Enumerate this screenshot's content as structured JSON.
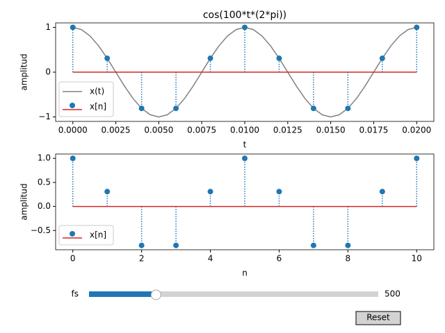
{
  "chart_data": [
    {
      "type": "line",
      "title": "cos(100*t*(2*pi))",
      "x_label": "t",
      "y_label": "amplitud",
      "xlim": [
        -0.001,
        0.021
      ],
      "ylim": [
        -1.1,
        1.1
      ],
      "xticks": [
        {
          "value": 0,
          "label": "0.0000"
        },
        {
          "value": 0.0025,
          "label": "0.0025"
        },
        {
          "value": 0.005,
          "label": "0.0050"
        },
        {
          "value": 0.0075,
          "label": "0.0075"
        },
        {
          "value": 0.01,
          "label": "0.0100"
        },
        {
          "value": 0.0125,
          "label": "0.0125"
        },
        {
          "value": 0.015,
          "label": "0.0150"
        },
        {
          "value": 0.0175,
          "label": "0.0175"
        },
        {
          "value": 0.02,
          "label": "0.0200"
        }
      ],
      "yticks": [
        {
          "value": -1,
          "label": "−1"
        },
        0,
        1
      ],
      "legend": "lower left",
      "series": [
        {
          "name": "x(t)",
          "type": "line",
          "color": "#808080",
          "x": [
            0,
            0.0005,
            0.001,
            0.0015,
            0.002,
            0.0025,
            0.003,
            0.0035,
            0.004,
            0.0045,
            0.005,
            0.0055,
            0.006,
            0.0065,
            0.007,
            0.0075,
            0.008,
            0.0085,
            0.009,
            0.0095,
            0.01,
            0.0105,
            0.011,
            0.0115,
            0.012,
            0.0125,
            0.013,
            0.0135,
            0.014,
            0.0145,
            0.015,
            0.0155,
            0.016,
            0.0165,
            0.017,
            0.0175,
            0.018,
            0.0185,
            0.019,
            0.0195,
            0.02
          ],
          "values": [
            1,
            0.951,
            0.809,
            0.588,
            0.309,
            0,
            -0.309,
            -0.588,
            -0.809,
            -0.951,
            -1,
            -0.951,
            -0.809,
            -0.588,
            -0.309,
            0,
            0.309,
            0.588,
            0.809,
            0.951,
            1,
            0.951,
            0.809,
            0.588,
            0.309,
            0,
            -0.309,
            -0.588,
            -0.809,
            -0.951,
            -1,
            -0.951,
            -0.809,
            -0.588,
            -0.309,
            0,
            0.309,
            0.588,
            0.809,
            0.951,
            1
          ]
        },
        {
          "name": "x[n]",
          "type": "stem",
          "color": "#1f77b4",
          "baseline_color": "#d62728",
          "x": [
            0,
            0.002,
            0.004,
            0.006,
            0.008,
            0.01,
            0.012,
            0.014,
            0.016,
            0.018,
            0.02
          ],
          "values": [
            1,
            0.309,
            -0.809,
            -0.809,
            0.309,
            1,
            0.309,
            -0.809,
            -0.809,
            0.309,
            1
          ]
        }
      ]
    },
    {
      "type": "stem",
      "x_label": "n",
      "y_label": "amplitud",
      "xlim": [
        -0.5,
        10.5
      ],
      "ylim": [
        -0.9,
        1.09
      ],
      "xticks": [
        0,
        2,
        4,
        6,
        8,
        10
      ],
      "yticks": [
        {
          "value": -0.5,
          "label": "−0.5"
        },
        {
          "value": 0,
          "label": "0.0"
        },
        {
          "value": 0.5,
          "label": "0.5"
        },
        {
          "value": 1,
          "label": "1.0"
        }
      ],
      "legend": "lower left",
      "series": [
        {
          "name": "x[n]",
          "type": "stem",
          "color": "#1f77b4",
          "baseline_color": "#d62728",
          "x": [
            0,
            1,
            2,
            3,
            4,
            5,
            6,
            7,
            8,
            9,
            10
          ],
          "values": [
            1,
            0.309,
            -0.809,
            -0.809,
            0.309,
            1,
            0.309,
            -0.809,
            -0.809,
            0.309,
            1
          ]
        }
      ]
    }
  ],
  "controls": {
    "slider": {
      "label": "fs",
      "value": 500,
      "range": [
        0,
        2160
      ],
      "color": "#1f77b4"
    },
    "button": {
      "label": "Reset"
    }
  }
}
